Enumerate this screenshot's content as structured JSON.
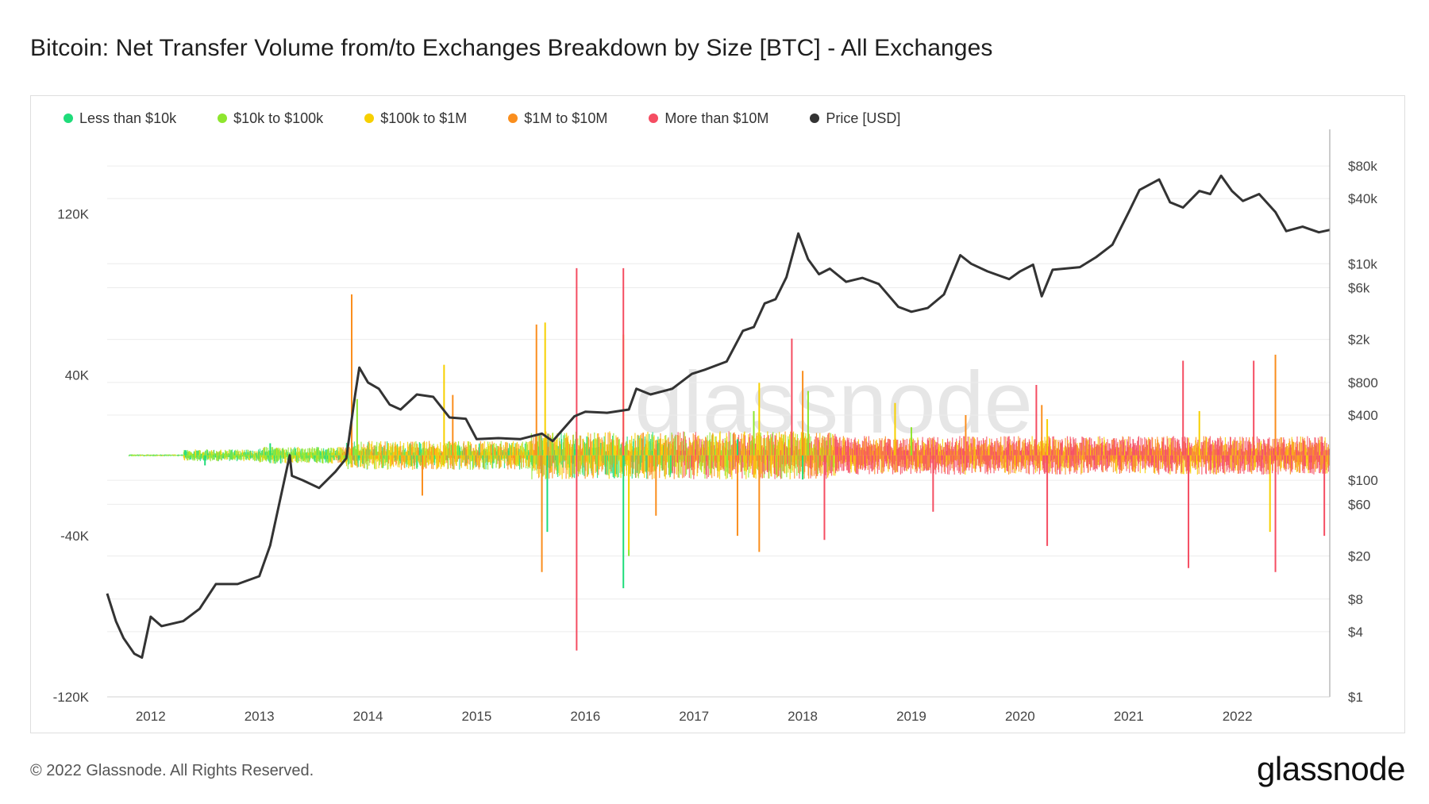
{
  "title": "Bitcoin: Net Transfer Volume from/to Exchanges Breakdown by Size [BTC] - All Exchanges",
  "footer": "© 2022 Glassnode. All Rights Reserved.",
  "brand": "glassnode",
  "watermark": "glassnode",
  "legend": [
    {
      "name": "Less than $10k",
      "color": "#1fdc7a"
    },
    {
      "name": "$10k to $100k",
      "color": "#8ee62e"
    },
    {
      "name": "$100k to $1M",
      "color": "#f7d000"
    },
    {
      "name": "$1M to $10M",
      "color": "#fa8e1d"
    },
    {
      "name": "More than $10M",
      "color": "#f54d62"
    },
    {
      "name": "Price [USD]",
      "color": "#333333"
    }
  ],
  "chart_data": {
    "type": "bar",
    "title": "Bitcoin: Net Transfer Volume from/to Exchanges Breakdown by Size [BTC] - All Exchanges",
    "x_ticks": [
      "2012",
      "2013",
      "2014",
      "2015",
      "2016",
      "2017",
      "2018",
      "2019",
      "2020",
      "2021",
      "2022"
    ],
    "x_range": [
      2011.6,
      2022.85
    ],
    "y_left": {
      "range": [
        -120000,
        160000
      ],
      "ticks": [
        -120000,
        -40000,
        40000,
        120000
      ],
      "tick_labels": [
        "-120K",
        "-40K",
        "40K",
        "120K"
      ]
    },
    "y_right": {
      "scale": "log",
      "range": [
        1,
        160000
      ],
      "ticks": [
        1,
        4,
        8,
        20,
        60,
        100,
        400,
        800,
        2000,
        6000,
        10000,
        40000,
        80000
      ],
      "tick_labels": [
        "$1",
        "$4",
        "$8",
        "$20",
        "$60",
        "$100",
        "$400",
        "$800",
        "$2k",
        "$6k",
        "$10k",
        "$40k",
        "$80k"
      ]
    },
    "grid": true,
    "legend_position": "top-left",
    "series": [
      {
        "name": "Less than $10k",
        "color": "#1fdc7a",
        "spikes": [
          [
            2012.5,
            -5000
          ],
          [
            2013.1,
            6000
          ],
          [
            2015.65,
            -38000
          ],
          [
            2016.35,
            -66000
          ],
          [
            2017.4,
            8000
          ],
          [
            2018.0,
            -12000
          ]
        ]
      },
      {
        "name": "$10k to $100k",
        "color": "#8ee62e",
        "spikes": [
          [
            2013.9,
            28000
          ],
          [
            2015.6,
            -33000
          ],
          [
            2016.4,
            -50000
          ],
          [
            2017.55,
            22000
          ],
          [
            2018.05,
            32000
          ],
          [
            2019.0,
            14000
          ]
        ]
      },
      {
        "name": "$100k to $1M",
        "color": "#f7d000",
        "spikes": [
          [
            2013.85,
            78000
          ],
          [
            2014.7,
            45000
          ],
          [
            2015.63,
            66000
          ],
          [
            2016.35,
            60000
          ],
          [
            2016.4,
            -47000
          ],
          [
            2017.6,
            36000
          ],
          [
            2018.85,
            26000
          ],
          [
            2020.25,
            18000
          ],
          [
            2021.65,
            22000
          ],
          [
            2022.3,
            -38000
          ]
        ]
      },
      {
        "name": "$1M to $10M",
        "color": "#fa8e1d",
        "spikes": [
          [
            2013.85,
            80000
          ],
          [
            2014.5,
            -20000
          ],
          [
            2014.78,
            30000
          ],
          [
            2015.6,
            -58000
          ],
          [
            2015.55,
            65000
          ],
          [
            2016.65,
            -30000
          ],
          [
            2017.4,
            -40000
          ],
          [
            2017.6,
            -48000
          ],
          [
            2018.0,
            42000
          ],
          [
            2019.5,
            20000
          ],
          [
            2020.2,
            25000
          ],
          [
            2022.35,
            50000
          ]
        ]
      },
      {
        "name": "More than $10M",
        "color": "#f54d62",
        "spikes": [
          [
            2015.92,
            93000
          ],
          [
            2015.92,
            -97000
          ],
          [
            2016.35,
            93000
          ],
          [
            2017.9,
            58000
          ],
          [
            2018.2,
            -42000
          ],
          [
            2019.2,
            -28000
          ],
          [
            2020.15,
            35000
          ],
          [
            2020.25,
            -45000
          ],
          [
            2021.5,
            47000
          ],
          [
            2021.55,
            -56000
          ],
          [
            2022.15,
            47000
          ],
          [
            2022.35,
            -58000
          ],
          [
            2022.8,
            -40000
          ]
        ]
      }
    ],
    "price": {
      "name": "Price [USD]",
      "color": "#333333",
      "points": [
        [
          2011.6,
          9
        ],
        [
          2011.68,
          5
        ],
        [
          2011.75,
          3.5
        ],
        [
          2011.85,
          2.5
        ],
        [
          2011.92,
          2.3
        ],
        [
          2012.0,
          5.5
        ],
        [
          2012.1,
          4.5
        ],
        [
          2012.3,
          5.0
        ],
        [
          2012.45,
          6.5
        ],
        [
          2012.6,
          11
        ],
        [
          2012.8,
          11
        ],
        [
          2013.0,
          13
        ],
        [
          2013.1,
          25
        ],
        [
          2013.22,
          90
        ],
        [
          2013.28,
          170
        ],
        [
          2013.3,
          110
        ],
        [
          2013.4,
          100
        ],
        [
          2013.55,
          85
        ],
        [
          2013.7,
          120
        ],
        [
          2013.8,
          160
        ],
        [
          2013.88,
          600
        ],
        [
          2013.92,
          1100
        ],
        [
          2014.0,
          800
        ],
        [
          2014.1,
          700
        ],
        [
          2014.2,
          500
        ],
        [
          2014.3,
          450
        ],
        [
          2014.45,
          620
        ],
        [
          2014.6,
          590
        ],
        [
          2014.75,
          380
        ],
        [
          2014.9,
          370
        ],
        [
          2015.0,
          240
        ],
        [
          2015.2,
          245
        ],
        [
          2015.4,
          240
        ],
        [
          2015.6,
          270
        ],
        [
          2015.7,
          230
        ],
        [
          2015.9,
          390
        ],
        [
          2016.0,
          430
        ],
        [
          2016.2,
          420
        ],
        [
          2016.4,
          450
        ],
        [
          2016.47,
          700
        ],
        [
          2016.6,
          620
        ],
        [
          2016.8,
          700
        ],
        [
          2016.98,
          960
        ],
        [
          2017.1,
          1050
        ],
        [
          2017.3,
          1250
        ],
        [
          2017.45,
          2400
        ],
        [
          2017.55,
          2600
        ],
        [
          2017.65,
          4300
        ],
        [
          2017.75,
          4700
        ],
        [
          2017.85,
          7500
        ],
        [
          2017.96,
          19000
        ],
        [
          2018.05,
          11000
        ],
        [
          2018.15,
          8000
        ],
        [
          2018.25,
          9000
        ],
        [
          2018.4,
          6800
        ],
        [
          2018.55,
          7400
        ],
        [
          2018.7,
          6500
        ],
        [
          2018.88,
          4000
        ],
        [
          2019.0,
          3600
        ],
        [
          2019.15,
          3900
        ],
        [
          2019.3,
          5200
        ],
        [
          2019.45,
          12000
        ],
        [
          2019.55,
          10000
        ],
        [
          2019.7,
          8500
        ],
        [
          2019.9,
          7200
        ],
        [
          2020.0,
          8500
        ],
        [
          2020.12,
          9800
        ],
        [
          2020.2,
          5000
        ],
        [
          2020.3,
          8800
        ],
        [
          2020.55,
          9300
        ],
        [
          2020.7,
          11500
        ],
        [
          2020.85,
          15000
        ],
        [
          2021.0,
          30000
        ],
        [
          2021.1,
          48000
        ],
        [
          2021.28,
          60000
        ],
        [
          2021.38,
          37000
        ],
        [
          2021.5,
          33000
        ],
        [
          2021.65,
          47000
        ],
        [
          2021.75,
          44000
        ],
        [
          2021.85,
          65000
        ],
        [
          2021.95,
          47000
        ],
        [
          2022.05,
          38000
        ],
        [
          2022.2,
          44000
        ],
        [
          2022.35,
          30000
        ],
        [
          2022.45,
          20000
        ],
        [
          2022.6,
          22000
        ],
        [
          2022.75,
          19500
        ],
        [
          2022.85,
          20500
        ]
      ]
    }
  }
}
